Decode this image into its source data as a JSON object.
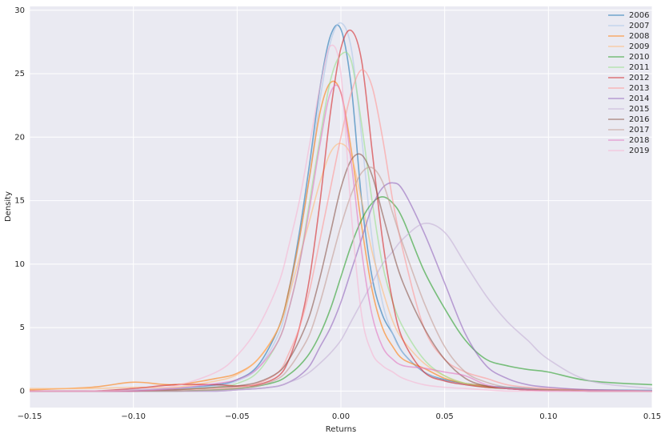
{
  "chart_data": {
    "type": "line",
    "xlabel": "Returns",
    "ylabel": "Density",
    "x": [
      -0.15,
      -0.12,
      -0.1,
      -0.08,
      -0.06,
      -0.05,
      -0.04,
      -0.03,
      -0.025,
      -0.02,
      -0.015,
      -0.01,
      -0.005,
      0,
      0.005,
      0.01,
      0.015,
      0.02,
      0.025,
      0.03,
      0.04,
      0.05,
      0.06,
      0.07,
      0.08,
      0.09,
      0.1,
      0.12,
      0.15
    ],
    "series": [
      {
        "name": "2006",
        "color": "#1f77b4",
        "values": [
          0,
          0,
          0.1,
          0.2,
          0.5,
          0.9,
          2,
          5,
          8,
          12.5,
          18,
          24,
          28,
          28.5,
          24,
          15,
          9,
          6,
          4.5,
          3,
          1.5,
          0.9,
          0.6,
          0.4,
          0.3,
          0.2,
          0.1,
          0.1,
          0.05
        ]
      },
      {
        "name": "2007",
        "color": "#aec7e8",
        "values": [
          0,
          0,
          0.1,
          0.2,
          0.4,
          0.8,
          1.8,
          4.5,
          7.5,
          12,
          17,
          23,
          27.5,
          29,
          27,
          20,
          12,
          7,
          4.5,
          3,
          1.5,
          0.8,
          0.5,
          0.3,
          0.2,
          0.1,
          0.1,
          0.05,
          0
        ]
      },
      {
        "name": "2008",
        "color": "#ff7f0e",
        "values": [
          0.1,
          0.3,
          0.7,
          0.5,
          1,
          1.4,
          2.5,
          5,
          8,
          12,
          17,
          22,
          24.3,
          23.5,
          19,
          13,
          8,
          5,
          3.5,
          2.5,
          1.8,
          1,
          0.6,
          0.4,
          0.2,
          0.1,
          0.1,
          0.05,
          0
        ]
      },
      {
        "name": "2009",
        "color": "#ffbb78",
        "values": [
          0.2,
          0.2,
          0.3,
          0.3,
          0.8,
          1.3,
          2.5,
          5,
          7.5,
          10.5,
          13.5,
          16.5,
          18.8,
          19.5,
          18.5,
          15,
          11,
          8,
          5.5,
          4,
          2.2,
          1.2,
          0.6,
          0.3,
          0.2,
          0.1,
          0.1,
          0,
          0
        ]
      },
      {
        "name": "2010",
        "color": "#2ca02c",
        "values": [
          0,
          0,
          0,
          0,
          0.1,
          0.2,
          0.4,
          0.8,
          1.3,
          2,
          3,
          4.5,
          6.5,
          9,
          11.5,
          13.5,
          14.8,
          15.3,
          14.8,
          13.5,
          9.5,
          6.5,
          4,
          2.5,
          2,
          1.7,
          1.5,
          0.8,
          0.5
        ]
      },
      {
        "name": "2011",
        "color": "#98df8a",
        "values": [
          0,
          0,
          0,
          0.1,
          0.3,
          0.6,
          1.5,
          4,
          6.5,
          10,
          15,
          20,
          24.5,
          26.5,
          26,
          21,
          15,
          10,
          7,
          5,
          2.5,
          1.2,
          0.6,
          0.3,
          0.2,
          0.1,
          0.1,
          0,
          0
        ]
      },
      {
        "name": "2012",
        "color": "#d62728",
        "values": [
          0,
          0,
          0.2,
          0.5,
          0.5,
          0.4,
          0.5,
          1.2,
          2.5,
          5,
          9,
          15,
          22,
          27,
          28.4,
          26,
          19,
          12,
          7,
          4,
          1.5,
          0.8,
          0.5,
          0.3,
          0.2,
          0.1,
          0.1,
          0,
          0
        ]
      },
      {
        "name": "2013",
        "color": "#ff9896",
        "values": [
          0,
          0,
          0,
          0.1,
          0.2,
          0.3,
          0.6,
          1.5,
          3,
          5,
          8,
          12,
          16,
          20,
          23.5,
          25.3,
          24,
          20,
          15,
          11,
          5,
          2.5,
          1.5,
          1,
          0.5,
          0.3,
          0.2,
          0.1,
          0
        ]
      },
      {
        "name": "2014",
        "color": "#9467bd",
        "values": [
          0,
          0,
          0,
          0,
          0,
          0.1,
          0.2,
          0.4,
          0.7,
          1.2,
          2,
          3.5,
          5,
          7,
          9.5,
          12,
          14.5,
          16,
          16.4,
          15.8,
          12.5,
          8.5,
          4.5,
          2,
          1,
          0.5,
          0.3,
          0.1,
          0
        ]
      },
      {
        "name": "2015",
        "color": "#c5b0d5",
        "values": [
          0,
          0,
          0,
          0,
          0,
          0.1,
          0.2,
          0.4,
          0.7,
          1,
          1.5,
          2.2,
          3,
          4,
          5.5,
          7,
          8.5,
          10,
          11,
          12,
          13.2,
          12.5,
          10,
          7.5,
          5.5,
          4,
          2.5,
          0.8,
          0.2
        ]
      },
      {
        "name": "2016",
        "color": "#8c564b",
        "values": [
          0,
          0,
          0,
          0.1,
          0.3,
          0.4,
          0.7,
          1.5,
          2.5,
          4,
          6,
          9,
          12.5,
          16,
          18.2,
          18.6,
          17,
          14,
          11,
          8.5,
          5,
          2.5,
          1,
          0.4,
          0.2,
          0.1,
          0.1,
          0,
          0
        ]
      },
      {
        "name": "2017",
        "color": "#c49c94",
        "values": [
          0,
          0,
          0,
          0,
          0.1,
          0.2,
          0.4,
          1,
          1.8,
          3,
          4.5,
          7,
          10,
          13,
          15.5,
          17.2,
          17.6,
          16.5,
          14,
          11.5,
          7,
          3.5,
          1.5,
          0.7,
          0.3,
          0.2,
          0.1,
          0,
          0
        ]
      },
      {
        "name": "2018",
        "color": "#e377c2",
        "values": [
          0,
          0,
          0,
          0.2,
          0.6,
          0.9,
          1.8,
          4,
          6.5,
          10,
          14.5,
          19.5,
          23.5,
          23.5,
          18,
          11,
          6,
          3.5,
          2.5,
          2,
          1.8,
          1.5,
          1.2,
          0.5,
          0.2,
          0.1,
          0,
          0,
          0
        ]
      },
      {
        "name": "2019",
        "color": "#f7b6d2",
        "values": [
          0,
          0,
          0.1,
          0.4,
          1.5,
          2.8,
          5,
          8.5,
          11.5,
          15,
          19.5,
          24,
          27.2,
          25,
          14,
          6,
          3,
          2,
          1.5,
          1,
          0.5,
          0.3,
          0.2,
          0.1,
          0,
          0,
          0,
          0,
          0
        ]
      }
    ],
    "alpha": 0.6,
    "xlim": [
      -0.15,
      0.15
    ],
    "xticks": [
      {
        "value": -0.15,
        "label": "−0.15"
      },
      {
        "value": -0.1,
        "label": "−0.10"
      },
      {
        "value": -0.05,
        "label": "−0.05"
      },
      {
        "value": 0,
        "label": "0.00"
      },
      0.05,
      {
        "value": 0.1,
        "label": "0.10"
      },
      0.15
    ],
    "ylim": [
      -1.3,
      30.3
    ],
    "yticks": [
      0,
      5,
      10,
      15,
      20,
      25,
      30
    ],
    "grid": true,
    "legend": "upper right"
  }
}
